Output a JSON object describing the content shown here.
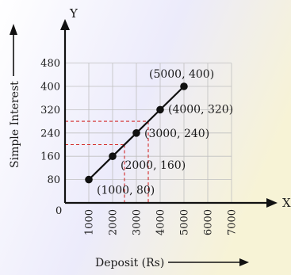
{
  "chart_data": {
    "type": "line",
    "x_axis_letter": "X",
    "y_axis_letter": "Y",
    "origin_label": "0",
    "xlabel": "Deposit (Rs)",
    "ylabel": "Simple Interest",
    "xlim": [
      0,
      7000
    ],
    "ylim": [
      0,
      480
    ],
    "x_ticks": [
      1000,
      2000,
      3000,
      4000,
      5000,
      6000,
      7000
    ],
    "x_tick_labels": [
      "1000",
      "2000",
      "3000",
      "4000",
      "5000",
      "6000",
      "7000"
    ],
    "y_ticks": [
      80,
      160,
      240,
      320,
      400,
      480
    ],
    "y_tick_labels": [
      "80",
      "160",
      "240",
      "320",
      "400",
      "480"
    ],
    "grid": true,
    "series": [
      {
        "x": [
          1000,
          2000,
          3000,
          4000,
          5000
        ],
        "y": [
          80,
          160,
          240,
          320,
          400
        ],
        "point_labels": [
          "(1000, 80)",
          "(2000, 160)",
          "(3000, 240)",
          "(4000, 320)",
          "(5000, 400)"
        ],
        "color": "#111111"
      }
    ],
    "guide_lines": [
      {
        "x": 2500,
        "y": 200
      },
      {
        "x": 3500,
        "y": 280
      }
    ],
    "colors": {
      "grid": "#bfbfbf",
      "guide": "#d42a2a",
      "axis": "#111111",
      "background_tint": "#e9e7fb"
    }
  }
}
